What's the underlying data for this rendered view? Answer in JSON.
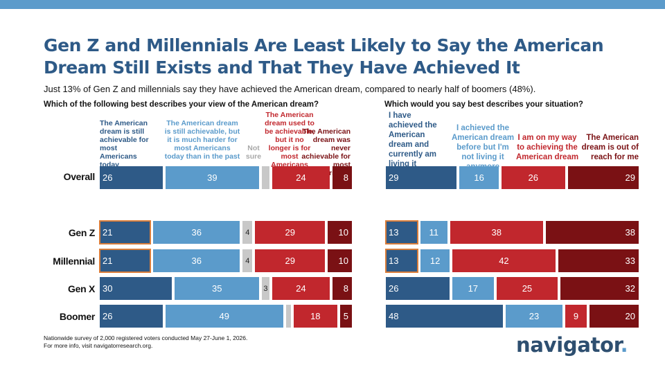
{
  "title": "Gen Z and Millennials Are Least Likely to Say the American Dream Still Exists and That They Have Achieved It",
  "subtitle": "Just 13% of Gen Z and millennials say they have achieved the American dream, compared to nearly half of boomers (48%).",
  "footer": {
    "line1": "Nationwide survey of 2,000 registered voters conducted May 27-June 1, 2026.",
    "line2": "For more info, visit navigatorresearch.org."
  },
  "logo": {
    "text": "navigator",
    "dot": "."
  },
  "chart_data": [
    {
      "type": "bar",
      "stacked": true,
      "orientation": "horizontal",
      "question": "Which of the following best describes your view of the American dream?",
      "categories": [
        "Overall",
        "Gen Z",
        "Millennial",
        "Gen X",
        "Boomer"
      ],
      "series": [
        {
          "name": "The American dream is still achievable for most Americans today",
          "color": "#2e5a87",
          "values": [
            26,
            21,
            21,
            30,
            26
          ],
          "labels": [
            "26",
            "21",
            "21",
            "30",
            "26"
          ]
        },
        {
          "name": "The American dream is still achievable, but it is much harder for most Americans today than in the past",
          "color": "#5b9bcb",
          "values": [
            39,
            36,
            36,
            35,
            49
          ],
          "labels": [
            "39",
            "36",
            "36",
            "35",
            "49"
          ]
        },
        {
          "name": "Not sure",
          "color": "#c8c8c8",
          "values": [
            3,
            4,
            4,
            3,
            2
          ],
          "labels": [
            "",
            "4",
            "4",
            "3",
            ""
          ]
        },
        {
          "name": "The American dream used to be achievable, but it no longer is for most Americans",
          "color": "#c1272d",
          "values": [
            24,
            29,
            29,
            24,
            18
          ],
          "labels": [
            "24",
            "29",
            "29",
            "24",
            "18"
          ]
        },
        {
          "name": "The American dream was never achievable for most Americans",
          "color": "#7a1114",
          "values": [
            8,
            10,
            10,
            8,
            5
          ],
          "labels": [
            "8",
            "10",
            "10",
            "8",
            "5"
          ]
        }
      ]
    },
    {
      "type": "bar",
      "stacked": true,
      "orientation": "horizontal",
      "question": "Which would you say best describes your situation?",
      "categories": [
        "Overall",
        "Gen Z",
        "Millennial",
        "Gen X",
        "Boomer"
      ],
      "series": [
        {
          "name": "I have achieved the American dream and currently am living it",
          "color": "#2e5a87",
          "values": [
            29,
            13,
            13,
            26,
            48
          ],
          "labels": [
            "29",
            "13",
            "13",
            "26",
            "48"
          ]
        },
        {
          "name": "I achieved the American dream before but I'm not living it anymore",
          "color": "#5b9bcb",
          "values": [
            16,
            11,
            12,
            17,
            23
          ],
          "labels": [
            "16",
            "11",
            "12",
            "17",
            "23"
          ]
        },
        {
          "name": "I am on my way to achieving the American dream",
          "color": "#c1272d",
          "values": [
            26,
            38,
            42,
            25,
            9
          ],
          "labels": [
            "26",
            "38",
            "42",
            "25",
            "9"
          ]
        },
        {
          "name": "The American dream is out of reach for me",
          "color": "#7a1114",
          "values": [
            29,
            38,
            33,
            32,
            20
          ],
          "labels": [
            "29",
            "38",
            "33",
            "32",
            "20"
          ]
        }
      ]
    }
  ]
}
